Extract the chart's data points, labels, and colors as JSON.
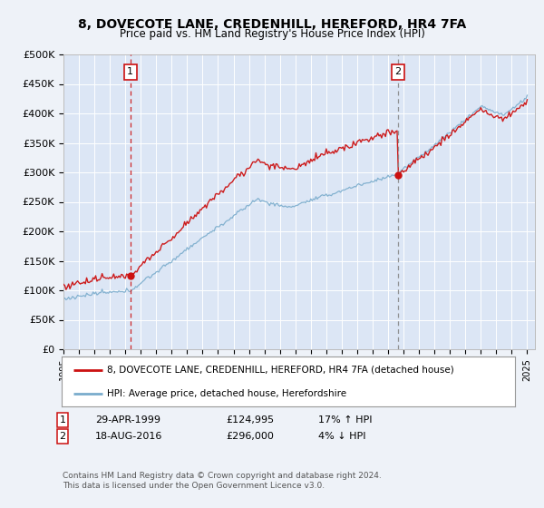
{
  "title": "8, DOVECOTE LANE, CREDENHILL, HEREFORD, HR4 7FA",
  "subtitle": "Price paid vs. HM Land Registry's House Price Index (HPI)",
  "background_color": "#eef2f8",
  "plot_bg_color": "#dce6f5",
  "ylim": [
    0,
    500000
  ],
  "yticks": [
    0,
    50000,
    100000,
    150000,
    200000,
    250000,
    300000,
    350000,
    400000,
    450000,
    500000
  ],
  "ytick_labels": [
    "£0",
    "£50K",
    "£100K",
    "£150K",
    "£200K",
    "£250K",
    "£300K",
    "£350K",
    "£400K",
    "£450K",
    "£500K"
  ],
  "sale1_date": 1999.33,
  "sale1_price": 124995,
  "sale2_date": 2016.63,
  "sale2_price": 296000,
  "legend_line1": "8, DOVECOTE LANE, CREDENHILL, HEREFORD, HR4 7FA (detached house)",
  "legend_line2": "HPI: Average price, detached house, Herefordshire",
  "footer": "Contains HM Land Registry data © Crown copyright and database right 2024.\nThis data is licensed under the Open Government Licence v3.0.",
  "red_color": "#cc1111",
  "blue_color": "#7aaccc",
  "dashed_color": "#cc1111"
}
